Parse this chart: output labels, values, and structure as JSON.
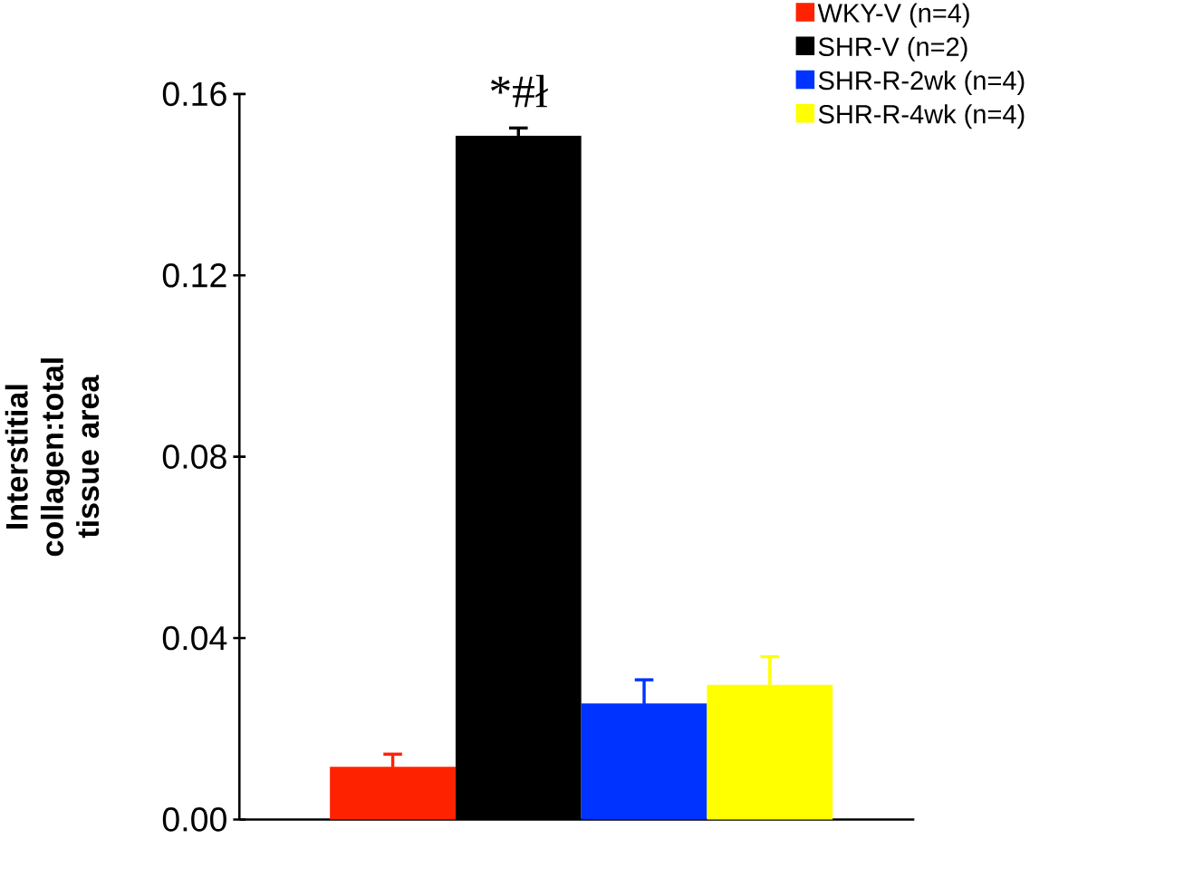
{
  "chart_data": {
    "type": "bar",
    "ylabel": "Interstitial collagen:total tissue area",
    "categories": [
      null,
      null,
      null,
      null
    ],
    "series": [
      {
        "name": "WKY-V (n=4)",
        "color": "#ff2200",
        "values": [
          0.0116,
          null,
          null,
          null
        ],
        "errors": [
          0.0028,
          null,
          null,
          null
        ]
      },
      {
        "name": "SHR-V (n=2)",
        "color": "#000000",
        "values": [
          null,
          0.1508,
          null,
          null
        ],
        "errors": [
          null,
          0.0017,
          null,
          null
        ]
      },
      {
        "name": "SHR-R-2wk (n=4)",
        "color": "#0033ff",
        "values": [
          null,
          null,
          0.0256,
          null
        ],
        "errors": [
          null,
          null,
          0.0052,
          null
        ]
      },
      {
        "name": "SHR-R-4wk (n=4)",
        "color": "#ffff00",
        "values": [
          null,
          null,
          null,
          0.0297
        ],
        "errors": [
          null,
          null,
          null,
          0.0062
        ]
      }
    ],
    "ylim": [
      0,
      0.16
    ],
    "yticks": [
      {
        "value": 0,
        "label": "0.00"
      },
      0.04,
      0.08,
      0.12,
      0.16
    ],
    "annotations": [
      "*#ł"
    ],
    "legend": "top right",
    "grid": false
  }
}
